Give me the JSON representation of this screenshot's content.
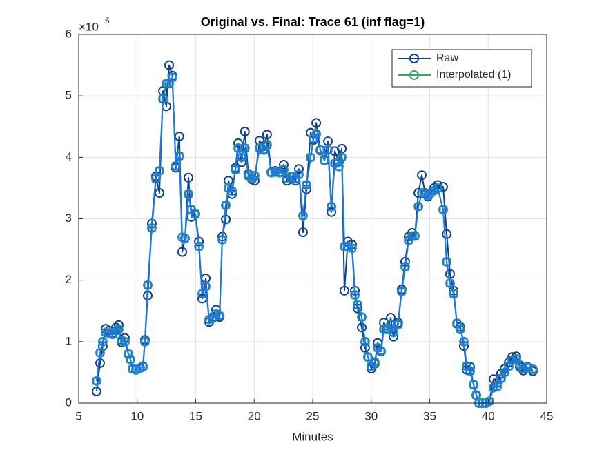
{
  "chart_data": {
    "type": "line",
    "title": "Original vs. Final: Trace 61 (inf flag=1)",
    "x_label": "Minutes",
    "y_multiplier": "×10",
    "y_exponent": "5",
    "xlim": [
      5,
      45
    ],
    "xticks": [
      5,
      10,
      15,
      20,
      25,
      30,
      35,
      40,
      45
    ],
    "ylim": [
      0,
      6
    ],
    "yticks": [
      0,
      1,
      2,
      3,
      4,
      5,
      6
    ],
    "grid": true,
    "legend_position": "upper-right",
    "x": [
      6.53,
      6.83,
      7.06,
      7.3,
      7.6,
      7.9,
      8.19,
      8.42,
      8.66,
      8.95,
      9.25,
      9.42,
      9.6,
      9.9,
      10.25,
      10.49,
      10.66,
      10.9,
      11.25,
      11.6,
      11.9,
      12.2,
      12.49,
      12.73,
      13.0,
      13.3,
      13.6,
      13.85,
      14.08,
      14.38,
      14.62,
      14.97,
      15.27,
      15.56,
      15.86,
      16.15,
      16.45,
      16.74,
      17.04,
      17.27,
      17.57,
      17.8,
      18.1,
      18.4,
      18.63,
      18.92,
      19.2,
      19.5,
      19.8,
      20.04,
      20.46,
      20.8,
      21.1,
      21.46,
      21.8,
      22.17,
      22.52,
      22.8,
      23.17,
      23.53,
      23.82,
      24.17,
      24.47,
      24.82,
      25.06,
      25.3,
      25.65,
      26.0,
      26.3,
      26.6,
      26.89,
      27.24,
      27.48,
      27.71,
      28.0,
      28.36,
      28.6,
      28.83,
      29.19,
      29.48,
      29.72,
      30.01,
      30.3,
      30.55,
      30.84,
      31.08,
      31.43,
      31.67,
      31.9,
      32.3,
      32.6,
      32.9,
      33.2,
      33.5,
      33.73,
      34.03,
      34.32,
      34.6,
      34.85,
      35.08,
      35.38,
      35.68,
      36.15,
      36.45,
      36.74,
      37.04,
      37.33,
      37.62,
      37.92,
      38.16,
      38.45,
      38.75,
      38.98,
      39.22,
      39.5,
      39.8,
      40.1,
      40.46,
      40.76,
      41.1,
      41.4,
      41.76,
      42.05,
      42.4,
      42.7,
      43.0,
      43.35,
      43.82
    ],
    "series": [
      {
        "name": "Raw",
        "color": "#0f3f8f",
        "marker": "circle",
        "values": [
          0.19,
          0.65,
          0.93,
          1.21,
          1.18,
          1.14,
          1.23,
          1.27,
          0.99,
          1.06,
          0.8,
          0.71,
          0.56,
          0.54,
          0.57,
          0.59,
          1.03,
          1.75,
          2.92,
          3.69,
          3.42,
          5.08,
          4.83,
          5.5,
          5.33,
          3.83,
          4.34,
          2.46,
          2.68,
          3.67,
          3.03,
          3.08,
          2.63,
          1.7,
          2.03,
          1.32,
          1.4,
          1.52,
          1.4,
          2.71,
          2.99,
          3.62,
          3.4,
          3.83,
          4.23,
          3.92,
          4.42,
          3.73,
          3.64,
          3.62,
          4.27,
          4.18,
          4.37,
          3.76,
          3.78,
          3.76,
          3.88,
          3.62,
          3.69,
          3.62,
          3.81,
          2.78,
          3.48,
          4.4,
          4.28,
          4.56,
          4.11,
          3.96,
          4.26,
          3.11,
          4.1,
          3.93,
          4.14,
          1.83,
          2.63,
          2.58,
          1.83,
          1.54,
          1.23,
          0.9,
          0.75,
          0.56,
          0.64,
          0.98,
          0.84,
          1.31,
          1.2,
          1.39,
          1.08,
          1.31,
          1.85,
          2.3,
          2.71,
          2.77,
          2.72,
          3.42,
          3.71,
          3.42,
          3.36,
          3.42,
          3.5,
          3.55,
          3.52,
          2.75,
          2.1,
          1.83,
          1.29,
          1.24,
          0.93,
          0.54,
          0.59,
          0.3,
          0.13,
          0,
          0,
          0,
          0.03,
          0.39,
          0.33,
          0.48,
          0.56,
          0.66,
          0.75,
          0.76,
          0.59,
          0.53,
          0.59,
          0.52
        ]
      },
      {
        "name": "Interpolated (1)",
        "color": "#3aa35c",
        "marker": "circle",
        "values": [
          0.36,
          0.82,
          1.0,
          1.15,
          1.14,
          1.12,
          1.18,
          1.2,
          1.02,
          1.0,
          0.8,
          0.71,
          0.56,
          0.54,
          0.57,
          0.6,
          1.0,
          1.92,
          2.85,
          3.65,
          3.78,
          4.95,
          5.2,
          5.2,
          5.3,
          3.86,
          4.02,
          2.7,
          2.68,
          3.4,
          3.15,
          3.08,
          2.55,
          1.78,
          1.9,
          1.36,
          1.38,
          1.45,
          1.42,
          2.66,
          3.22,
          3.5,
          3.45,
          3.8,
          4.15,
          4.0,
          4.15,
          3.7,
          3.66,
          3.7,
          4.15,
          4.12,
          4.2,
          3.75,
          3.76,
          3.75,
          3.8,
          3.66,
          3.68,
          3.65,
          3.72,
          3.05,
          3.55,
          4.0,
          4.3,
          4.38,
          4.12,
          3.95,
          4.12,
          3.2,
          3.9,
          3.85,
          4.0,
          2.55,
          2.55,
          2.52,
          1.76,
          1.6,
          1.4,
          1.0,
          0.75,
          0.6,
          0.67,
          0.9,
          0.85,
          1.2,
          1.2,
          1.28,
          1.15,
          1.28,
          1.82,
          2.22,
          2.65,
          2.72,
          2.72,
          3.2,
          3.42,
          3.4,
          3.38,
          3.42,
          3.46,
          3.5,
          3.15,
          2.3,
          1.95,
          1.78,
          1.3,
          1.2,
          1.0,
          0.6,
          0.52,
          0.3,
          0.13,
          0,
          0,
          0,
          0.03,
          0.25,
          0.27,
          0.4,
          0.5,
          0.6,
          0.7,
          0.72,
          0.62,
          0.56,
          0.58,
          0.55
        ]
      },
      {
        "color": "#1a78de",
        "marker": "square",
        "values": [
          0.36,
          0.82,
          1.0,
          1.15,
          1.14,
          1.12,
          1.18,
          1.2,
          1.02,
          1.0,
          0.8,
          0.71,
          0.56,
          0.54,
          0.57,
          0.6,
          1.0,
          1.92,
          2.85,
          3.65,
          3.78,
          4.95,
          5.2,
          5.2,
          5.3,
          3.86,
          4.02,
          2.7,
          2.68,
          3.4,
          3.15,
          3.08,
          2.55,
          1.78,
          1.9,
          1.36,
          1.38,
          1.45,
          1.42,
          2.66,
          3.22,
          3.5,
          3.45,
          3.8,
          4.15,
          4.0,
          4.15,
          3.7,
          3.66,
          3.7,
          4.15,
          4.12,
          4.2,
          3.75,
          3.76,
          3.75,
          3.8,
          3.66,
          3.68,
          3.65,
          3.72,
          3.05,
          3.55,
          4.0,
          4.3,
          4.38,
          4.12,
          3.95,
          4.12,
          3.2,
          3.9,
          3.85,
          4.0,
          2.55,
          2.55,
          2.52,
          1.76,
          1.6,
          1.4,
          1.0,
          0.75,
          0.6,
          0.67,
          0.9,
          0.85,
          1.2,
          1.2,
          1.28,
          1.15,
          1.28,
          1.82,
          2.22,
          2.65,
          2.72,
          2.72,
          3.2,
          3.42,
          3.4,
          3.38,
          3.42,
          3.46,
          3.5,
          3.15,
          2.3,
          1.95,
          1.78,
          1.3,
          1.2,
          1.0,
          0.6,
          0.52,
          0.3,
          0.13,
          0,
          0,
          0,
          0.03,
          0.25,
          0.27,
          0.4,
          0.5,
          0.6,
          0.7,
          0.72,
          0.62,
          0.56,
          0.58,
          0.55
        ]
      }
    ]
  }
}
